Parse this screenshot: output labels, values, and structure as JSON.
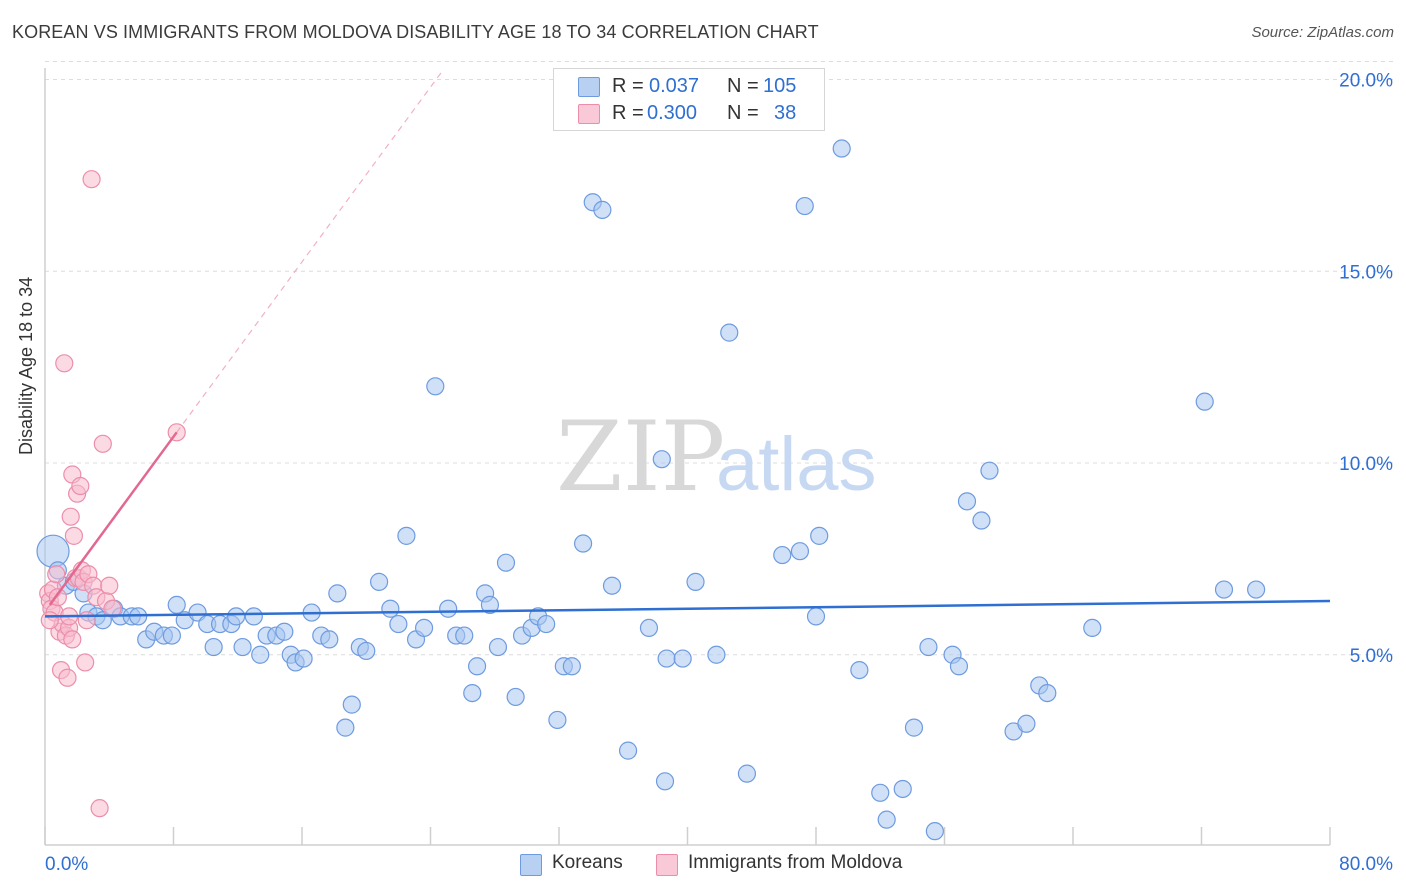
{
  "title": "KOREAN VS IMMIGRANTS FROM MOLDOVA DISABILITY AGE 18 TO 34 CORRELATION CHART",
  "source": "Source: ZipAtlas.com",
  "watermark": {
    "zip": "ZIP",
    "atlas": "atlas"
  },
  "colors": {
    "blue_fill": "#a8c6f0",
    "blue_stroke": "#6e9be0",
    "blue_line": "#2f6fd1",
    "pink_fill": "#f7bccd",
    "pink_stroke": "#ec8eab",
    "pink_line": "#e2688f",
    "grid": "#dcdcdc",
    "axis_text": "#2f6fd1"
  },
  "stats": [
    {
      "r_label": "R =",
      "r_value": "0.037",
      "n_label": "N =",
      "n_value": "105",
      "color": "blue"
    },
    {
      "r_label": "R =",
      "r_value": "0.300",
      "n_label": "N =",
      "n_value": "38",
      "color": "pink"
    }
  ],
  "legend": [
    {
      "label": "Koreans",
      "color": "blue"
    },
    {
      "label": "Immigrants from Moldova",
      "color": "pink"
    }
  ],
  "chart_data": {
    "type": "scatter",
    "ylabel": "Disability Age 18 to 34",
    "xlim": [
      0,
      80
    ],
    "ylim": [
      0,
      21
    ],
    "x_tick_labels": [
      {
        "value": 0,
        "label": "0.0%"
      },
      {
        "value": 80,
        "label": "80.0%"
      }
    ],
    "y_tick_labels": [
      {
        "value": 5,
        "label": "5.0%"
      },
      {
        "value": 10,
        "label": "10.0%"
      },
      {
        "value": 15,
        "label": "15.0%"
      },
      {
        "value": 20,
        "label": "20.0%"
      }
    ],
    "grid": true,
    "series": [
      {
        "name": "Koreans",
        "color": "blue",
        "trend": {
          "x": [
            0,
            80
          ],
          "y": [
            6.0,
            6.4
          ]
        },
        "points": [
          [
            0.5,
            7.7
          ],
          [
            0.8,
            7.2
          ],
          [
            1.3,
            6.8
          ],
          [
            1.8,
            6.9
          ],
          [
            2.4,
            6.6
          ],
          [
            2.7,
            6.1
          ],
          [
            3.2,
            6.0
          ],
          [
            3.6,
            5.9
          ],
          [
            4.3,
            6.2
          ],
          [
            4.7,
            6.0
          ],
          [
            5.4,
            6.0
          ],
          [
            5.8,
            6.0
          ],
          [
            6.3,
            5.4
          ],
          [
            6.8,
            5.6
          ],
          [
            7.4,
            5.5
          ],
          [
            7.9,
            5.5
          ],
          [
            8.2,
            6.3
          ],
          [
            8.7,
            5.9
          ],
          [
            9.5,
            6.1
          ],
          [
            10.1,
            5.8
          ],
          [
            10.5,
            5.2
          ],
          [
            10.9,
            5.8
          ],
          [
            11.6,
            5.8
          ],
          [
            11.9,
            6.0
          ],
          [
            12.3,
            5.2
          ],
          [
            13.0,
            6.0
          ],
          [
            13.4,
            5.0
          ],
          [
            13.8,
            5.5
          ],
          [
            14.4,
            5.5
          ],
          [
            14.9,
            5.6
          ],
          [
            15.3,
            5.0
          ],
          [
            15.6,
            4.8
          ],
          [
            16.1,
            4.9
          ],
          [
            16.6,
            6.1
          ],
          [
            17.2,
            5.5
          ],
          [
            17.7,
            5.4
          ],
          [
            18.2,
            6.6
          ],
          [
            18.7,
            3.1
          ],
          [
            19.1,
            3.7
          ],
          [
            19.6,
            5.2
          ],
          [
            20.0,
            5.1
          ],
          [
            20.8,
            6.9
          ],
          [
            21.5,
            6.2
          ],
          [
            22.0,
            5.8
          ],
          [
            22.5,
            8.1
          ],
          [
            23.1,
            5.4
          ],
          [
            23.6,
            5.7
          ],
          [
            24.3,
            12.0
          ],
          [
            25.1,
            6.2
          ],
          [
            25.6,
            5.5
          ],
          [
            26.1,
            5.5
          ],
          [
            26.6,
            4.0
          ],
          [
            26.9,
            4.7
          ],
          [
            27.4,
            6.6
          ],
          [
            27.7,
            6.3
          ],
          [
            28.2,
            5.2
          ],
          [
            28.7,
            7.4
          ],
          [
            29.3,
            3.9
          ],
          [
            29.7,
            5.5
          ],
          [
            30.3,
            5.7
          ],
          [
            30.7,
            6.0
          ],
          [
            31.2,
            5.8
          ],
          [
            31.9,
            3.3
          ],
          [
            32.3,
            4.7
          ],
          [
            32.8,
            4.7
          ],
          [
            33.5,
            7.9
          ],
          [
            34.1,
            16.8
          ],
          [
            34.7,
            16.6
          ],
          [
            35.3,
            6.8
          ],
          [
            36.3,
            2.5
          ],
          [
            37.6,
            5.7
          ],
          [
            38.4,
            10.1
          ],
          [
            38.6,
            1.7
          ],
          [
            38.7,
            4.9
          ],
          [
            39.7,
            4.9
          ],
          [
            40.5,
            6.9
          ],
          [
            41.8,
            5.0
          ],
          [
            42.6,
            13.4
          ],
          [
            43.7,
            1.9
          ],
          [
            45.9,
            7.6
          ],
          [
            47.0,
            7.7
          ],
          [
            47.3,
            16.7
          ],
          [
            48.0,
            6.0
          ],
          [
            48.2,
            8.1
          ],
          [
            49.6,
            18.2
          ],
          [
            50.7,
            4.6
          ],
          [
            52.0,
            1.4
          ],
          [
            52.4,
            0.7
          ],
          [
            53.4,
            1.5
          ],
          [
            54.1,
            3.1
          ],
          [
            55.0,
            5.2
          ],
          [
            55.4,
            0.4
          ],
          [
            56.5,
            5.0
          ],
          [
            56.9,
            4.7
          ],
          [
            57.4,
            9.0
          ],
          [
            58.3,
            8.5
          ],
          [
            58.8,
            9.8
          ],
          [
            60.3,
            3.0
          ],
          [
            61.1,
            3.2
          ],
          [
            61.9,
            4.2
          ],
          [
            62.4,
            4.0
          ],
          [
            65.2,
            5.7
          ],
          [
            72.2,
            11.6
          ],
          [
            73.4,
            6.7
          ],
          [
            75.4,
            6.7
          ]
        ]
      },
      {
        "name": "Immigrants from Moldova",
        "color": "pink",
        "trend": {
          "x": [
            0.3,
            8.2
          ],
          "y": [
            6.3,
            10.8
          ]
        },
        "trend_extension": {
          "x": [
            8.2,
            24.7
          ],
          "y": [
            10.8,
            20.2
          ]
        },
        "points": [
          [
            0.2,
            6.6
          ],
          [
            0.3,
            6.4
          ],
          [
            0.4,
            6.2
          ],
          [
            0.5,
            6.7
          ],
          [
            0.6,
            6.1
          ],
          [
            0.7,
            7.1
          ],
          [
            0.8,
            6.5
          ],
          [
            0.9,
            5.6
          ],
          [
            1.0,
            4.6
          ],
          [
            1.1,
            5.8
          ],
          [
            1.2,
            12.6
          ],
          [
            1.3,
            5.5
          ],
          [
            1.4,
            4.4
          ],
          [
            1.5,
            5.7
          ],
          [
            1.6,
            8.6
          ],
          [
            1.7,
            9.7
          ],
          [
            1.7,
            5.4
          ],
          [
            1.8,
            8.1
          ],
          [
            1.9,
            7.0
          ],
          [
            2.0,
            9.2
          ],
          [
            2.1,
            7.0
          ],
          [
            2.2,
            9.4
          ],
          [
            2.3,
            7.2
          ],
          [
            2.4,
            6.9
          ],
          [
            2.5,
            4.8
          ],
          [
            2.6,
            5.9
          ],
          [
            2.7,
            7.1
          ],
          [
            2.9,
            17.4
          ],
          [
            3.0,
            6.8
          ],
          [
            3.2,
            6.5
          ],
          [
            3.4,
            1.0
          ],
          [
            3.6,
            10.5
          ],
          [
            3.8,
            6.4
          ],
          [
            4.0,
            6.8
          ],
          [
            4.2,
            6.2
          ],
          [
            1.5,
            6.0
          ],
          [
            0.3,
            5.9
          ],
          [
            8.2,
            10.8
          ]
        ]
      }
    ]
  }
}
